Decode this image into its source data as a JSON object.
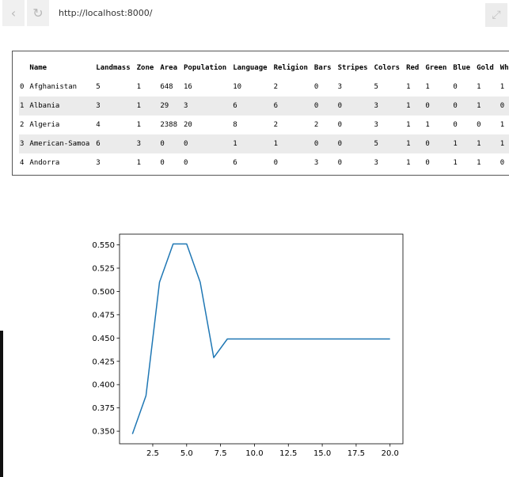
{
  "browser": {
    "back_icon": "‹",
    "reload_icon": "↻",
    "url": "http://localhost:8000/",
    "expand_icon": "⤢"
  },
  "dataframe": {
    "columns": [
      "",
      "Name",
      "Landmass",
      "Zone",
      "Area",
      "Population",
      "Language",
      "Religion",
      "Bars",
      "Stripes",
      "Colors",
      "Red",
      "Green",
      "Blue",
      "Gold",
      "White"
    ],
    "rows": [
      [
        "0",
        "Afghanistan",
        "5",
        "1",
        "648",
        "16",
        "10",
        "2",
        "0",
        "3",
        "5",
        "1",
        "1",
        "0",
        "1",
        "1"
      ],
      [
        "1",
        "Albania",
        "3",
        "1",
        "29",
        "3",
        "6",
        "6",
        "0",
        "0",
        "3",
        "1",
        "0",
        "0",
        "1",
        "0"
      ],
      [
        "2",
        "Algeria",
        "4",
        "1",
        "2388",
        "20",
        "8",
        "2",
        "2",
        "0",
        "3",
        "1",
        "1",
        "0",
        "0",
        "1"
      ],
      [
        "3",
        "American-Samoa",
        "6",
        "3",
        "0",
        "0",
        "1",
        "1",
        "0",
        "0",
        "5",
        "1",
        "0",
        "1",
        "1",
        "1"
      ],
      [
        "4",
        "Andorra",
        "3",
        "1",
        "0",
        "0",
        "6",
        "0",
        "3",
        "0",
        "3",
        "1",
        "0",
        "1",
        "1",
        "0"
      ]
    ]
  },
  "chart_data": {
    "type": "line",
    "x": [
      1,
      2,
      3,
      4,
      5,
      6,
      7,
      8,
      9,
      10,
      11,
      12,
      13,
      14,
      15,
      16,
      17,
      18,
      19,
      20
    ],
    "series": [
      {
        "values": [
          0.347,
          0.388,
          0.51,
          0.551,
          0.551,
          0.51,
          0.429,
          0.449,
          0.449,
          0.449,
          0.449,
          0.449,
          0.449,
          0.449,
          0.449,
          0.449,
          0.449,
          0.449,
          0.449,
          0.449
        ],
        "color": "#1f77b4"
      }
    ],
    "xticks": [
      "2.5",
      "5.0",
      "7.5",
      "10.0",
      "12.5",
      "15.0",
      "17.5",
      "20.0"
    ],
    "yticks": [
      "0.350",
      "0.375",
      "0.400",
      "0.425",
      "0.450",
      "0.475",
      "0.500",
      "0.525",
      "0.550"
    ],
    "xlim": [
      0.05,
      20.95
    ],
    "ylim": [
      0.3365,
      0.5615
    ],
    "grid": false
  }
}
